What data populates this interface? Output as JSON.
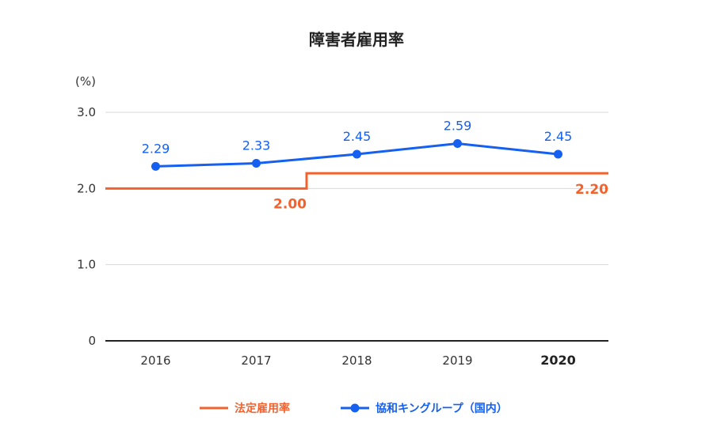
{
  "chart_data": {
    "type": "line",
    "title": "障害者雇用率",
    "ylabel_unit": "(%)",
    "ylim": [
      0,
      3.0
    ],
    "yticks": [
      {
        "value": 0,
        "label": "0"
      },
      {
        "value": 1.0,
        "label": "1.0"
      },
      {
        "value": 2.0,
        "label": "2.0"
      },
      {
        "value": 3.0,
        "label": "3.0"
      }
    ],
    "categories": [
      "2016",
      "2017",
      "2018",
      "2019",
      "2020"
    ],
    "highlight_category": "2020",
    "grid": true,
    "legend_position": "bottom",
    "series": [
      {
        "name": "法定雇用率",
        "style": "step",
        "color": "#f2622e",
        "values": [
          2.0,
          2.0,
          2.2,
          2.2,
          2.2
        ],
        "value_labels": [
          {
            "label": "2.00",
            "value": 2.0
          },
          {
            "label": "2.20",
            "value": 2.2
          }
        ]
      },
      {
        "name": "協和キングループ（国内）",
        "style": "line-markers",
        "color": "#1560f0",
        "values": [
          2.29,
          2.33,
          2.45,
          2.59,
          2.45
        ],
        "value_labels": [
          "2.29",
          "2.33",
          "2.45",
          "2.59",
          "2.45"
        ]
      }
    ]
  }
}
